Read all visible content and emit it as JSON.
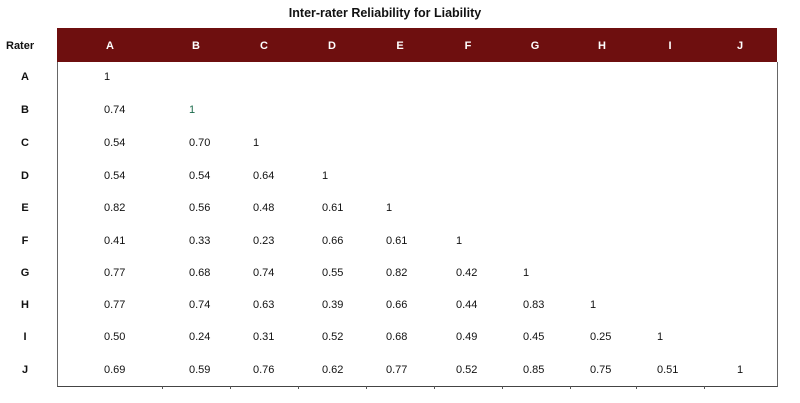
{
  "table": {
    "title": "Inter-rater Reliability for Liability",
    "rater_header": "Rater",
    "columns": [
      "A",
      "B",
      "C",
      "D",
      "E",
      "F",
      "G",
      "H",
      "I",
      "J"
    ],
    "rows": [
      {
        "label": "A",
        "values": [
          "1"
        ]
      },
      {
        "label": "B",
        "values": [
          "0.74",
          "1"
        ]
      },
      {
        "label": "C",
        "values": [
          "0.54",
          "0.70",
          "1"
        ]
      },
      {
        "label": "D",
        "values": [
          "0.54",
          "0.54",
          "0.64",
          "1"
        ]
      },
      {
        "label": "E",
        "values": [
          "0.82",
          "0.56",
          "0.48",
          "0.61",
          "1"
        ]
      },
      {
        "label": "F",
        "values": [
          "0.41",
          "0.33",
          "0.23",
          "0.66",
          "0.61",
          "1"
        ]
      },
      {
        "label": "G",
        "values": [
          "0.77",
          "0.68",
          "0.74",
          "0.55",
          "0.82",
          "0.42",
          "1"
        ]
      },
      {
        "label": "H",
        "values": [
          "0.77",
          "0.74",
          "0.63",
          "0.39",
          "0.66",
          "0.44",
          "0.83",
          "1"
        ]
      },
      {
        "label": "I",
        "values": [
          "0.50",
          "0.24",
          "0.31",
          "0.52",
          "0.68",
          "0.49",
          "0.45",
          "0.25",
          "1"
        ]
      },
      {
        "label": "J",
        "values": [
          "0.69",
          "0.59",
          "0.76",
          "0.62",
          "0.77",
          "0.52",
          "0.85",
          "0.75",
          "0.51",
          "1"
        ]
      }
    ],
    "colors": {
      "header_background": "#6e0f0f",
      "header_text": "#ffffff"
    }
  }
}
